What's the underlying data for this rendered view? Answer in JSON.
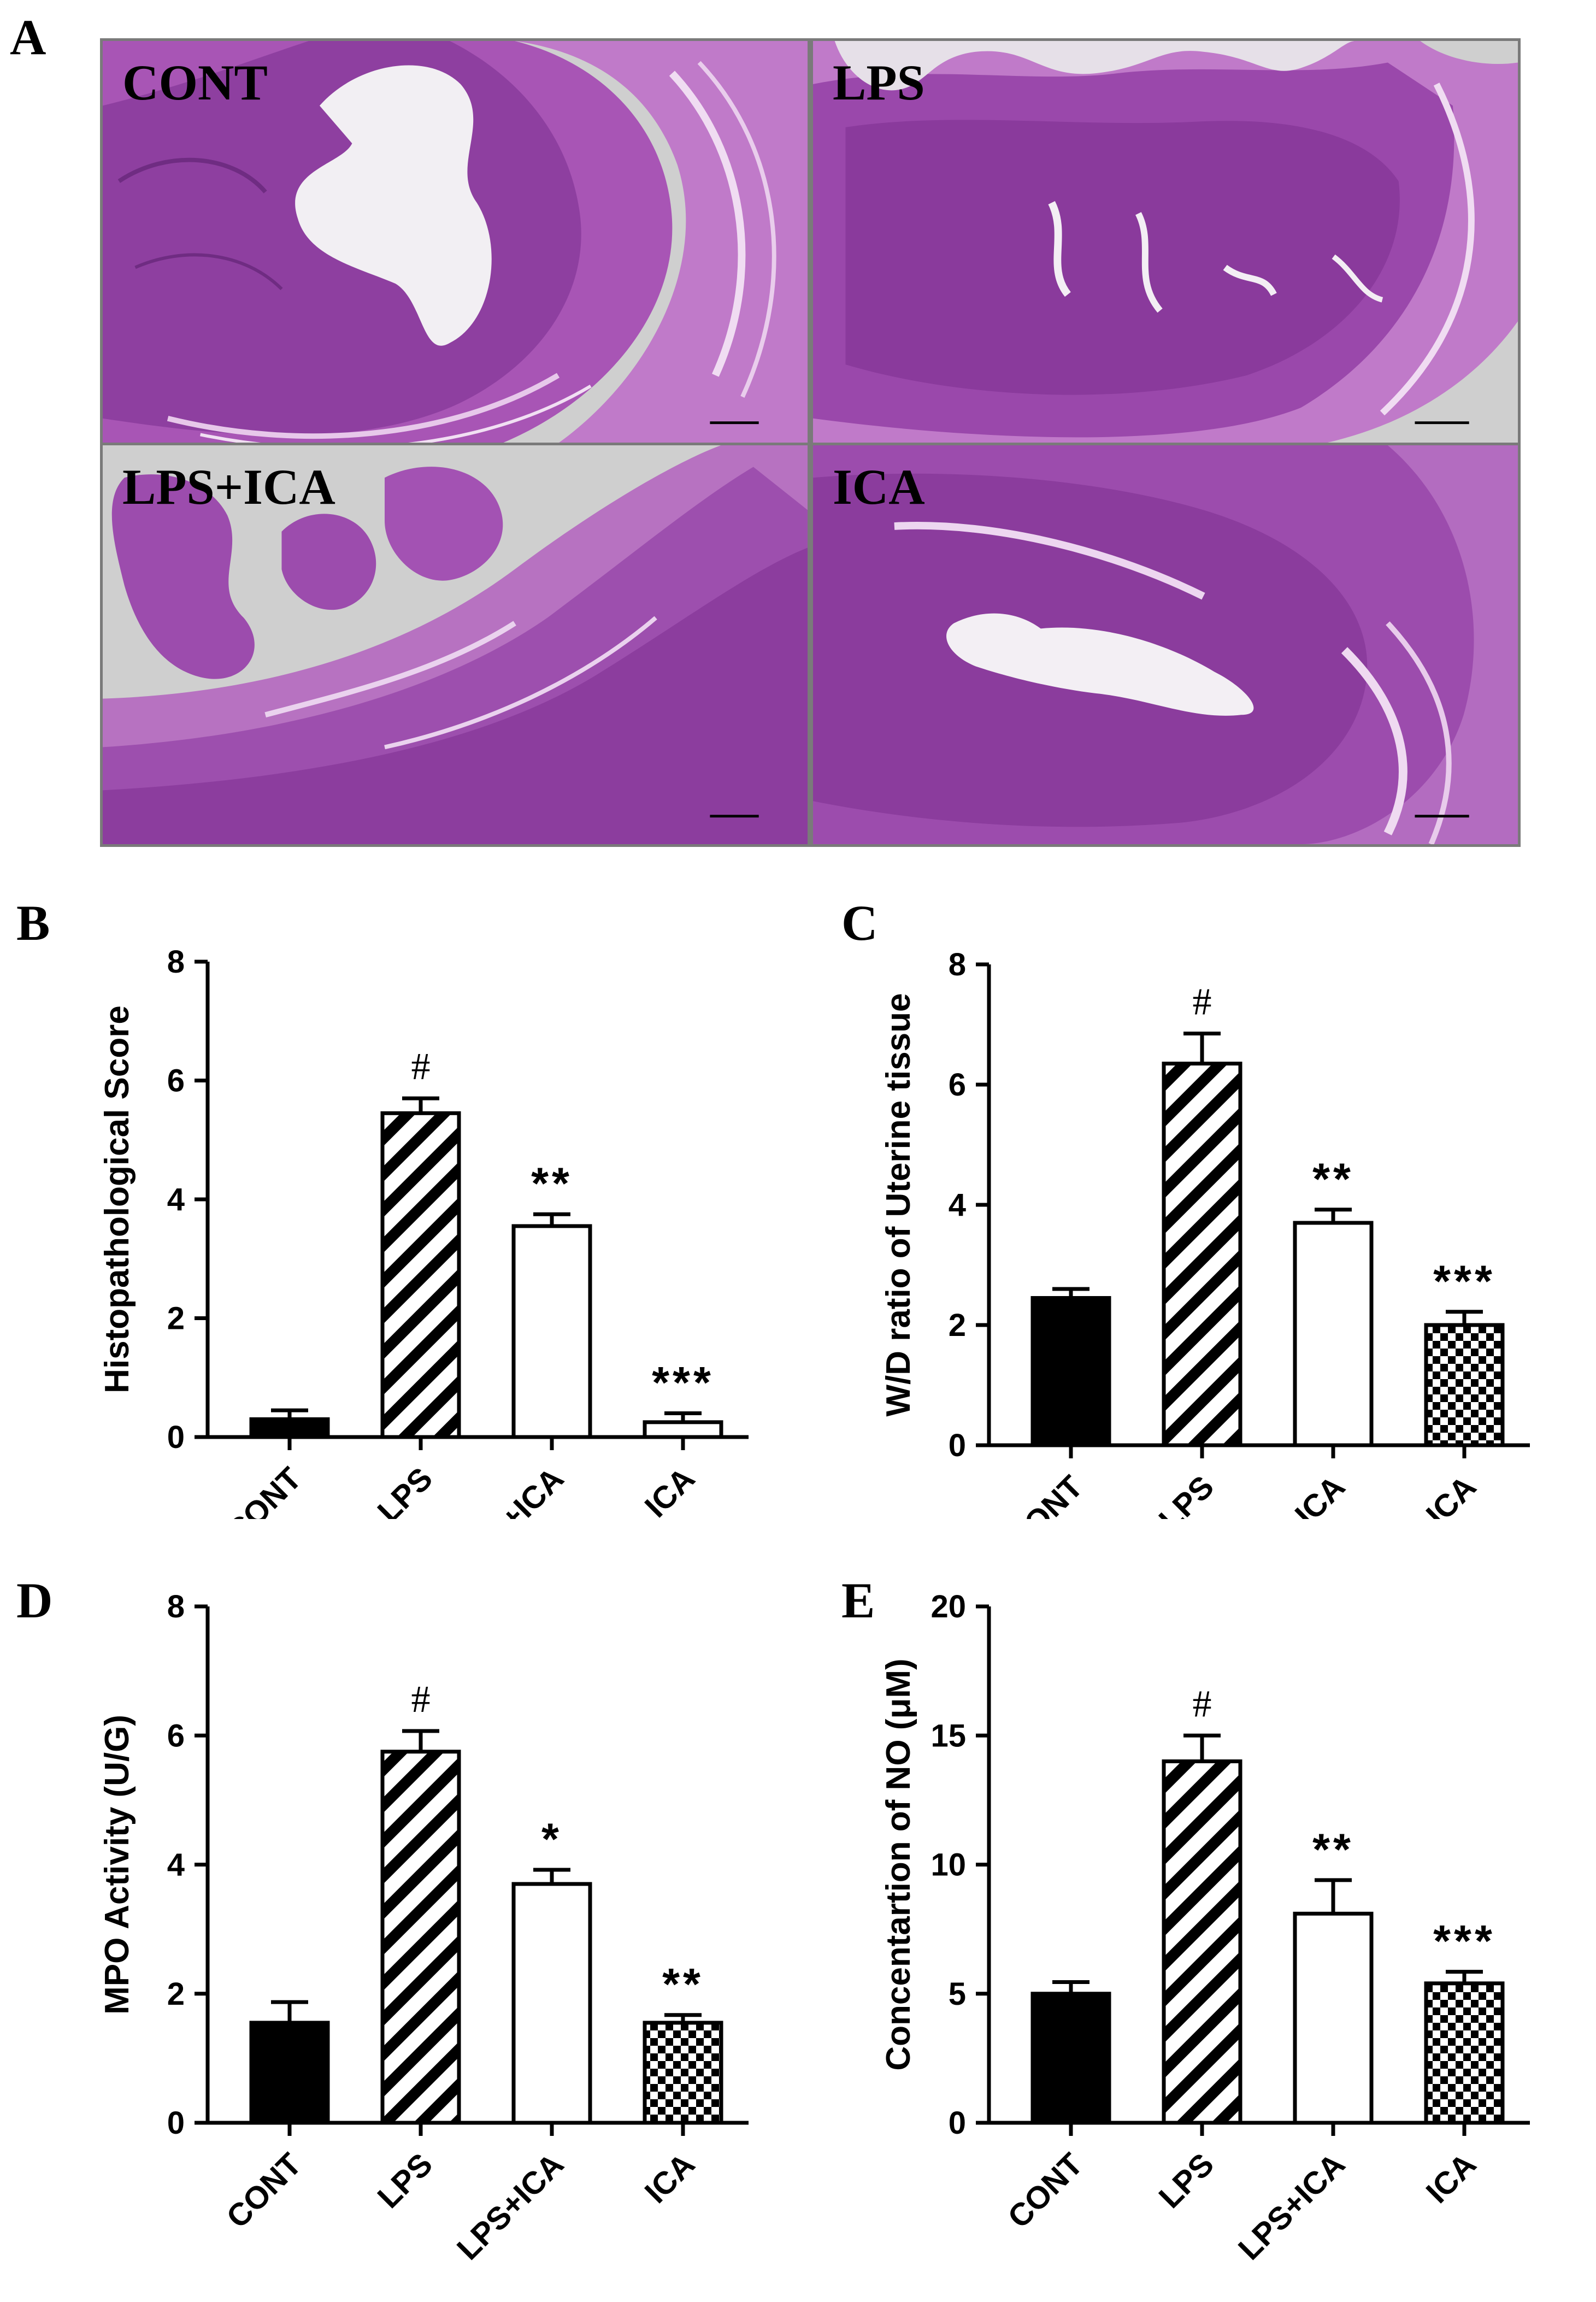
{
  "figure": {
    "panel_a": {
      "letter": "A",
      "images": [
        {
          "label": "CONT",
          "lumen": "central-irregular"
        },
        {
          "label": "LPS",
          "lumen": "top-edge"
        },
        {
          "label": "LPS+ICA",
          "lumen": "left-disrupted"
        },
        {
          "label": "ICA",
          "lumen": "elongated-slit"
        }
      ]
    }
  },
  "colors": {
    "tissue_dark": "#8a3f9a",
    "tissue_mid": "#b86cc2",
    "tissue_light": "#d9a6df",
    "background_slide": "#cfcfcf",
    "bar_black": "#000000"
  },
  "chart_data": [
    {
      "letter": "B",
      "type": "bar",
      "ylabel": "Histopathological Score",
      "ylim": [
        0,
        8
      ],
      "yticks": [
        0,
        2,
        4,
        6,
        8
      ],
      "categories": [
        "CONT",
        "LPS",
        "LPS+ICA",
        "ICA"
      ],
      "values": [
        0.3,
        5.45,
        3.55,
        0.25
      ],
      "errors": [
        0.15,
        0.25,
        0.2,
        0.15
      ],
      "patterns": [
        "solid",
        "hatch",
        "white",
        "white"
      ],
      "annotations": [
        "",
        "#",
        "**",
        "***"
      ]
    },
    {
      "letter": "C",
      "type": "bar",
      "ylabel": "W/D ratio of Uterine tissue",
      "ylim": [
        0,
        8
      ],
      "yticks": [
        0,
        2,
        4,
        6,
        8
      ],
      "categories": [
        "CONT",
        "LPS",
        "LPS+ICA",
        "ICA"
      ],
      "values": [
        2.45,
        6.35,
        3.7,
        2.0
      ],
      "errors": [
        0.15,
        0.5,
        0.22,
        0.22
      ],
      "patterns": [
        "solid",
        "hatch",
        "white",
        "checker"
      ],
      "annotations": [
        "",
        "#",
        "**",
        "***"
      ]
    },
    {
      "letter": "D",
      "type": "bar",
      "ylabel": "MPO Activity (U/G)",
      "ylim": [
        0,
        8
      ],
      "yticks": [
        0,
        2,
        4,
        6,
        8
      ],
      "categories": [
        "CONT",
        "LPS",
        "LPS+ICA",
        "ICA"
      ],
      "values": [
        1.55,
        5.75,
        3.7,
        1.55
      ],
      "errors": [
        0.32,
        0.32,
        0.22,
        0.12
      ],
      "patterns": [
        "solid",
        "hatch",
        "white",
        "checker"
      ],
      "annotations": [
        "",
        "#",
        "*",
        "**"
      ]
    },
    {
      "letter": "E",
      "type": "bar",
      "ylabel": "Concentartion of NO (μM)",
      "ylim": [
        0,
        20
      ],
      "yticks": [
        0,
        5,
        10,
        15,
        20
      ],
      "categories": [
        "CONT",
        "LPS",
        "LPS+ICA",
        "ICA"
      ],
      "values": [
        5.0,
        14.0,
        8.1,
        5.4
      ],
      "errors": [
        0.45,
        1.0,
        1.3,
        0.45
      ],
      "patterns": [
        "solid",
        "hatch",
        "white",
        "checker"
      ],
      "annotations": [
        "",
        "#",
        "**",
        "***"
      ]
    }
  ]
}
